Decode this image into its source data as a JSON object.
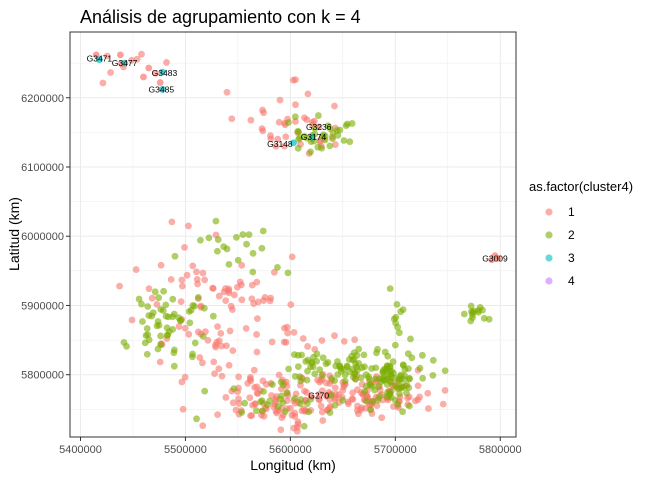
{
  "chart_data": {
    "type": "scatter",
    "title": "Análisis de agrupamiento con k = 4",
    "xlabel": "Longitud (km)",
    "ylabel": "Latitud (km)",
    "xlim": [
      5390000,
      5815000
    ],
    "ylim": [
      5710000,
      6295000
    ],
    "x_ticks": [
      5400000,
      5500000,
      5600000,
      5700000,
      5800000
    ],
    "x_tick_labels": [
      "5400000",
      "5500000",
      "5600000",
      "5700000",
      "5800000"
    ],
    "y_ticks": [
      5800000,
      5900000,
      6000000,
      6100000,
      6200000
    ],
    "y_tick_labels": [
      "5800000",
      "5900000",
      "6000000",
      "6100000",
      "6200000"
    ],
    "grid": true,
    "legend": {
      "title": "as.factor(cluster4)",
      "placement": "right",
      "entries": [
        {
          "label": "1",
          "color": "#F8766D"
        },
        {
          "label": "2",
          "color": "#7CAE00"
        },
        {
          "label": "3",
          "color": "#00BFC4"
        },
        {
          "label": "4",
          "color": "#C77CFF"
        }
      ]
    },
    "regions": [
      {
        "cluster": "1",
        "color": "#F8766D",
        "n": 90,
        "cx": 5675000,
        "cy": 5770000,
        "sx": 30000,
        "sy": 15000
      },
      {
        "cluster": "1",
        "color": "#F8766D",
        "n": 110,
        "cx": 5590000,
        "cy": 5765000,
        "sx": 38000,
        "sy": 18000
      },
      {
        "cluster": "1",
        "color": "#F8766D",
        "n": 70,
        "cx": 5525000,
        "cy": 5910000,
        "sx": 35000,
        "sy": 40000
      },
      {
        "cluster": "1",
        "color": "#F8766D",
        "n": 40,
        "cx": 5600000,
        "cy": 6160000,
        "sx": 28000,
        "sy": 25000
      },
      {
        "cluster": "1",
        "color": "#F8766D",
        "n": 10,
        "cx": 5445000,
        "cy": 6245000,
        "sx": 22000,
        "sy": 12000
      },
      {
        "cluster": "1",
        "color": "#F8766D",
        "n": 15,
        "cx": 5610000,
        "cy": 5850000,
        "sx": 20000,
        "sy": 10000
      },
      {
        "cluster": "1",
        "color": "#F8766D",
        "n": 18,
        "cx": 5520000,
        "cy": 5820000,
        "sx": 25000,
        "sy": 30000
      },
      {
        "cluster": "2",
        "color": "#7CAE00",
        "n": 90,
        "cx": 5695000,
        "cy": 5795000,
        "sx": 18000,
        "sy": 20000
      },
      {
        "cluster": "2",
        "color": "#7CAE00",
        "n": 60,
        "cx": 5640000,
        "cy": 5810000,
        "sx": 22000,
        "sy": 12000
      },
      {
        "cluster": "2",
        "color": "#7CAE00",
        "n": 55,
        "cx": 5480000,
        "cy": 5880000,
        "sx": 20000,
        "sy": 28000
      },
      {
        "cluster": "2",
        "color": "#7CAE00",
        "n": 35,
        "cx": 5625000,
        "cy": 6145000,
        "sx": 18000,
        "sy": 15000
      },
      {
        "cluster": "2",
        "color": "#7CAE00",
        "n": 14,
        "cx": 5777000,
        "cy": 5888000,
        "sx": 5000,
        "sy": 7000
      },
      {
        "cluster": "2",
        "color": "#7CAE00",
        "n": 30,
        "cx": 5590000,
        "cy": 5760000,
        "sx": 35000,
        "sy": 12000
      },
      {
        "cluster": "2",
        "color": "#7CAE00",
        "n": 20,
        "cx": 5550000,
        "cy": 5975000,
        "sx": 30000,
        "sy": 25000
      },
      {
        "cluster": "2",
        "color": "#7CAE00",
        "n": 12,
        "cx": 5700000,
        "cy": 5880000,
        "sx": 10000,
        "sy": 20000
      }
    ],
    "points": [
      {
        "x": 5415000,
        "y": 6262000,
        "cluster": "1"
      },
      {
        "x": 5418000,
        "y": 6255000,
        "cluster": "3"
      },
      {
        "x": 5442000,
        "y": 6250000,
        "cluster": "3"
      },
      {
        "x": 5438000,
        "y": 6262000,
        "cluster": "1"
      },
      {
        "x": 5460000,
        "y": 6230000,
        "cluster": "1"
      },
      {
        "x": 5478000,
        "y": 6237000,
        "cluster": "3"
      },
      {
        "x": 5476000,
        "y": 6222000,
        "cluster": "1"
      },
      {
        "x": 5465000,
        "y": 6243000,
        "cluster": "1"
      },
      {
        "x": 5478000,
        "y": 6212000,
        "cluster": "3"
      },
      {
        "x": 5795000,
        "y": 5972000,
        "cluster": "1"
      },
      {
        "x": 5798000,
        "y": 5968000,
        "cluster": "1"
      },
      {
        "x": 5792000,
        "y": 5966000,
        "cluster": "1"
      },
      {
        "x": 5603000,
        "y": 6135000,
        "cluster": "3"
      },
      {
        "x": 5621000,
        "y": 6143000,
        "cluster": "3"
      },
      {
        "x": 5627000,
        "y": 6158000,
        "cluster": "1"
      },
      {
        "x": 5620000,
        "y": 5768000,
        "cluster": "1"
      }
    ],
    "point_labels": [
      {
        "text": "G3471",
        "x": 5418000,
        "y": 6257000
      },
      {
        "text": "G3477",
        "x": 5442000,
        "y": 6250000
      },
      {
        "text": "G3483",
        "x": 5480000,
        "y": 6236000
      },
      {
        "text": "G3485",
        "x": 5477000,
        "y": 6212000
      },
      {
        "text": "G3236",
        "x": 5627000,
        "y": 6158000
      },
      {
        "text": "G3174",
        "x": 5622000,
        "y": 6143000
      },
      {
        "text": "G3148",
        "x": 5590000,
        "y": 6133000
      },
      {
        "text": "G3009",
        "x": 5795000,
        "y": 5968000
      },
      {
        "text": "G270",
        "x": 5627000,
        "y": 5770000
      }
    ]
  }
}
